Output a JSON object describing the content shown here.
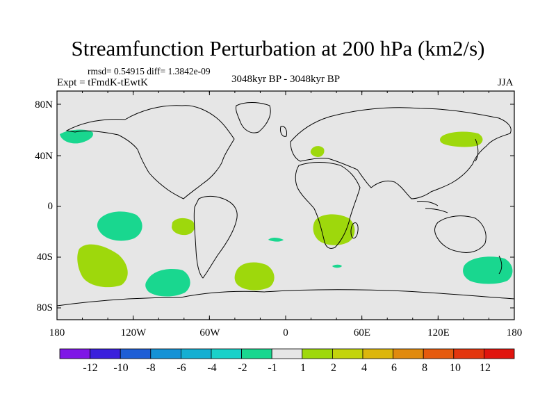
{
  "title": "Streamfunction Perturbation at 200 hPa (km2/s)",
  "stats": "rmsd= 0.54915 diff= 1.3842e-09",
  "experiment": "Expt = tFmdK-tEwtK",
  "period": "3048kyr BP - 3048kyr BP",
  "season": "JJA",
  "map": {
    "background_color": "#e6e6e6",
    "lat_labels": [
      "80N",
      "40N",
      "0",
      "40S",
      "80S"
    ],
    "lon_labels": [
      "180",
      "120W",
      "60W",
      "0",
      "60E",
      "120E",
      "180"
    ],
    "anomaly_regions": [
      {
        "name": "north-pacific-negative",
        "level": "-2 to -1",
        "color": "#19d78f"
      },
      {
        "name": "south-pacific-west-positive",
        "level": "1 to 2",
        "color": "#9ed80c"
      },
      {
        "name": "south-pacific-central-negative",
        "level": "-2 to -1",
        "color": "#19d78f"
      },
      {
        "name": "south-pacific-east-negative",
        "level": "-2 to -1",
        "color": "#19d78f"
      },
      {
        "name": "south-atlantic-positive",
        "level": "1 to 2",
        "color": "#9ed80c"
      },
      {
        "name": "south-atlantic-west-positive",
        "level": "1 to 2",
        "color": "#9ed80c"
      },
      {
        "name": "southern-africa-positive",
        "level": "1 to 2",
        "color": "#9ed80c"
      },
      {
        "name": "southeast-pacific-negative",
        "level": "-2 to -1",
        "color": "#19d78f"
      },
      {
        "name": "japan-positive",
        "level": "1 to 2",
        "color": "#9ed80c"
      },
      {
        "name": "europe-positive",
        "level": "1 to 2",
        "color": "#9ed80c"
      },
      {
        "name": "south-atlantic-small-negative",
        "level": "-2 to -1",
        "color": "#19d78f"
      },
      {
        "name": "indian-ocean-small-negative",
        "level": "-2 to -1",
        "color": "#19d78f"
      }
    ]
  },
  "colorbar": {
    "labels": [
      "-12",
      "-10",
      "-8",
      "-6",
      "-4",
      "-2",
      "-1",
      "1",
      "2",
      "4",
      "6",
      "8",
      "10",
      "12"
    ],
    "colors": [
      "#7f16e6",
      "#3a1fdc",
      "#1e5ed6",
      "#1592d6",
      "#14afd2",
      "#19d1c9",
      "#19d78f",
      "#e6e6e6",
      "#9ed80c",
      "#c3d40c",
      "#dcb60c",
      "#e08a0e",
      "#e55a0e",
      "#e3360e",
      "#e0140e"
    ]
  }
}
